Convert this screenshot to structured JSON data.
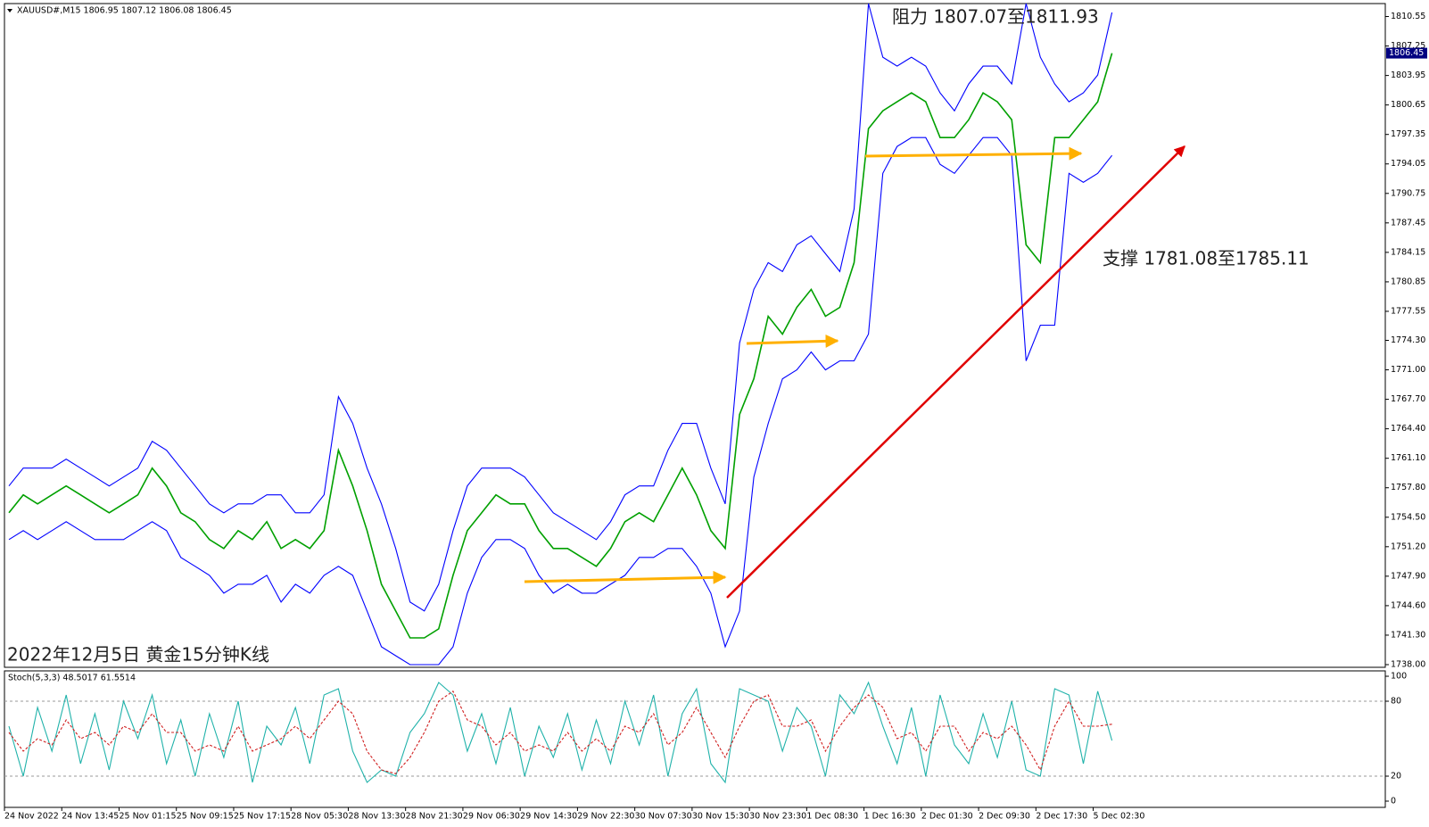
{
  "chart_data": [
    {
      "type": "line",
      "header": "XAUUSD#,M15  1806.95 1807.12 1806.08 1806.45",
      "annotations": [
        "阻力 1807.07至1811.93",
        "支撑 1781.08至1785.11",
        "2022年12月5日 黄金15分钟K线"
      ],
      "categories": [
        "24 Nov 2022",
        null,
        null,
        null,
        "24 Nov 13:45",
        null,
        null,
        null,
        "25 Nov 01:15",
        null,
        null,
        null,
        "25 Nov 09:15",
        null,
        null,
        null,
        "25 Nov 17:15",
        null,
        null,
        null,
        "28 Nov 05:30",
        null,
        null,
        null,
        "28 Nov 13:30",
        null,
        null,
        null,
        "28 Nov 21:30",
        null,
        null,
        null,
        "29 Nov 06:30",
        null,
        null,
        null,
        "29 Nov 14:30",
        null,
        null,
        null,
        "29 Nov 22:30",
        null,
        null,
        null,
        "30 Nov 07:30",
        null,
        null,
        null,
        "30 Nov 15:30",
        null,
        null,
        null,
        "30 Nov 23:30",
        null,
        null,
        null,
        "1 Dec 08:30",
        null,
        null,
        null,
        "1 Dec 16:30",
        null,
        null,
        null,
        "2 Dec 01:30",
        null,
        null,
        null,
        "2 Dec 09:30",
        null,
        null,
        null,
        "2 Dec 17:30",
        null,
        null,
        null,
        "5 Dec 02:30",
        null
      ],
      "series": [
        {
          "color": "#00a000",
          "values": [
            1755,
            1757,
            1756,
            1757,
            1758,
            1757,
            1756,
            1755,
            1756,
            1757,
            1760,
            1758,
            1755,
            1754,
            1752,
            1751,
            1753,
            1752,
            1754,
            1751,
            1752,
            1751,
            1753,
            1762,
            1758,
            1753,
            1747,
            1744,
            1741,
            1741,
            1742,
            1748,
            1753,
            1755,
            1757,
            1756,
            1756,
            1753,
            1751,
            1751,
            1750,
            1749,
            1751,
            1754,
            1755,
            1754,
            1757,
            1760,
            1757,
            1753,
            1751,
            1766,
            1770,
            1777,
            1775,
            1778,
            1780,
            1777,
            1778,
            1783,
            1798,
            1800,
            1801,
            1802,
            1801,
            1797,
            1797,
            1799,
            1802,
            1801,
            1799,
            1785,
            1783,
            1797,
            1797,
            1799,
            1801,
            1806.45
          ]
        },
        {
          "color": "#0000ff",
          "values": [
            1758,
            1760,
            1760,
            1760,
            1761,
            1760,
            1759,
            1758,
            1759,
            1760,
            1763,
            1762,
            1760,
            1758,
            1756,
            1755,
            1756,
            1756,
            1757,
            1757,
            1755,
            1755,
            1757,
            1768,
            1765,
            1760,
            1756,
            1751,
            1745,
            1744,
            1747,
            1753,
            1758,
            1760,
            1760,
            1760,
            1759,
            1757,
            1755,
            1754,
            1753,
            1752,
            1754,
            1757,
            1758,
            1758,
            1762,
            1765,
            1765,
            1760,
            1756,
            1774,
            1780,
            1783,
            1782,
            1785,
            1786,
            1784,
            1782,
            1789,
            1812,
            1806,
            1805,
            1806,
            1805,
            1802,
            1800,
            1803,
            1805,
            1805,
            1803,
            1812,
            1806,
            1803,
            1801,
            1802,
            1804,
            1811
          ]
        },
        {
          "color": "#0000ff",
          "values": [
            1752,
            1753,
            1752,
            1753,
            1754,
            1753,
            1752,
            1752,
            1752,
            1753,
            1754,
            1753,
            1750,
            1749,
            1748,
            1746,
            1747,
            1747,
            1748,
            1745,
            1747,
            1746,
            1748,
            1749,
            1748,
            1744,
            1740,
            1739,
            1738,
            1738,
            1738,
            1740,
            1746,
            1750,
            1752,
            1752,
            1751,
            1748,
            1746,
            1747,
            1746,
            1746,
            1747,
            1748,
            1750,
            1750,
            1751,
            1751,
            1749,
            1746,
            1740,
            1744,
            1759,
            1765,
            1770,
            1771,
            1773,
            1771,
            1772,
            1772,
            1775,
            1793,
            1796,
            1797,
            1797,
            1794,
            1793,
            1795,
            1797,
            1797,
            1795,
            1772,
            1776,
            1776,
            1793,
            1792,
            1793,
            1795
          ]
        }
      ],
      "ylim": [
        1737.7,
        1812.0
      ],
      "yticks": [
        {
          "value": 1738.0,
          "label": "1738.00"
        },
        {
          "value": 1741.3,
          "label": "1741.30"
        },
        {
          "value": 1744.6,
          "label": "1744.60"
        },
        {
          "value": 1747.9,
          "label": "1747.90"
        },
        {
          "value": 1751.2,
          "label": "1751.20"
        },
        {
          "value": 1754.5,
          "label": "1754.50"
        },
        {
          "value": 1757.8,
          "label": "1757.80"
        },
        {
          "value": 1761.1,
          "label": "1761.10"
        },
        {
          "value": 1764.4,
          "label": "1764.40"
        },
        {
          "value": 1767.7,
          "label": "1767.70"
        },
        {
          "value": 1771.0,
          "label": "1771.00"
        },
        {
          "value": 1774.3,
          "label": "1774.30"
        },
        {
          "value": 1777.55,
          "label": "1777.55"
        },
        {
          "value": 1780.85,
          "label": "1780.85"
        },
        {
          "value": 1784.15,
          "label": "1784.15"
        },
        {
          "value": 1787.45,
          "label": "1787.45"
        },
        {
          "value": 1790.75,
          "label": "1790.75"
        },
        {
          "value": 1794.05,
          "label": "1794.05"
        },
        {
          "value": 1797.35,
          "label": "1797.35"
        },
        {
          "value": 1800.65,
          "label": "1800.65"
        },
        {
          "value": 1803.95,
          "label": "1803.95"
        },
        {
          "value": 1807.25,
          "label": "1807.25"
        },
        {
          "value": 1810.55,
          "label": "1810.55"
        }
      ],
      "grid": false
    },
    {
      "type": "line",
      "header": "Stoch(5,3,3) 48.5017 61.5514",
      "series": [
        {
          "color": "#20b2aa",
          "style": "solid",
          "values": [
            60,
            20,
            75,
            40,
            85,
            30,
            70,
            25,
            80,
            50,
            85,
            30,
            65,
            20,
            70,
            35,
            80,
            15,
            60,
            45,
            75,
            30,
            85,
            90,
            40,
            15,
            25,
            20,
            55,
            70,
            95,
            85,
            40,
            70,
            30,
            75,
            20,
            60,
            35,
            70,
            25,
            65,
            30,
            80,
            45,
            85,
            20,
            70,
            90,
            30,
            15,
            90,
            85,
            80,
            40,
            75,
            60,
            20,
            85,
            70,
            95,
            60,
            30,
            75,
            20,
            85,
            45,
            30,
            70,
            35,
            80,
            25,
            20,
            90,
            85,
            30,
            88,
            48.5017
          ]
        },
        {
          "color": "#d02020",
          "style": "dashed",
          "values": [
            55,
            40,
            50,
            45,
            65,
            50,
            55,
            45,
            60,
            55,
            70,
            55,
            55,
            40,
            45,
            40,
            60,
            40,
            45,
            50,
            60,
            50,
            65,
            80,
            70,
            40,
            25,
            22,
            35,
            55,
            80,
            88,
            65,
            60,
            45,
            55,
            40,
            45,
            40,
            55,
            40,
            50,
            40,
            60,
            55,
            70,
            45,
            55,
            75,
            55,
            35,
            60,
            80,
            85,
            60,
            60,
            65,
            40,
            60,
            75,
            85,
            75,
            50,
            55,
            40,
            60,
            60,
            40,
            55,
            50,
            60,
            45,
            25,
            60,
            80,
            60,
            60,
            61.5514
          ]
        }
      ],
      "ylim": [
        -5,
        104.3
      ],
      "yticks": [
        100,
        80,
        20,
        0
      ],
      "levels": [
        80,
        20
      ]
    }
  ]
}
